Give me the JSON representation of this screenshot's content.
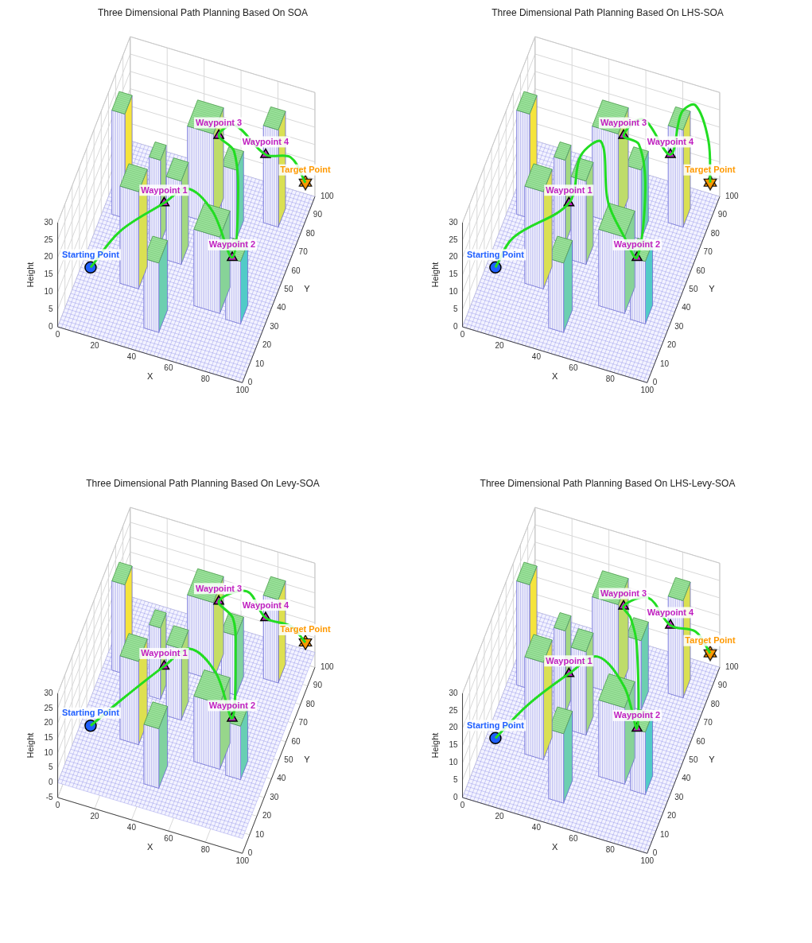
{
  "chart_data": [
    {
      "type": "line",
      "title": "Three Dimensional Path Planning Based On SOA",
      "xlabel": "X",
      "ylabel": "Y",
      "zlabel": "Height",
      "xlim": [
        0,
        100
      ],
      "ylim": [
        0,
        100
      ],
      "zlim": [
        0,
        30
      ],
      "xticks": [
        0,
        20,
        40,
        60,
        80,
        100
      ],
      "yticks": [
        0,
        10,
        20,
        30,
        40,
        50,
        60,
        70,
        80,
        90,
        100
      ],
      "zticks": [
        0,
        5,
        10,
        15,
        20,
        25,
        30
      ],
      "grid": true,
      "ground_height": 0,
      "obstacles": [
        {
          "x": [
            5,
            12
          ],
          "y": [
            62,
            72
          ],
          "height": 30
        },
        {
          "x": [
            22,
            32
          ],
          "y": [
            30,
            42
          ],
          "height": 28
        },
        {
          "x": [
            28,
            34
          ],
          "y": [
            55,
            63
          ],
          "height": 24
        },
        {
          "x": [
            42,
            56
          ],
          "y": [
            72,
            86
          ],
          "height": 26
        },
        {
          "x": [
            40,
            48
          ],
          "y": [
            48,
            58
          ],
          "height": 24
        },
        {
          "x": [
            62,
            70
          ],
          "y": [
            68,
            78
          ],
          "height": 20
        },
        {
          "x": [
            42,
            50
          ],
          "y": [
            12,
            24
          ],
          "height": 20
        },
        {
          "x": [
            62,
            76
          ],
          "y": [
            30,
            44
          ],
          "height": 22
        },
        {
          "x": [
            80,
            88
          ],
          "y": [
            28,
            38
          ],
          "height": 18
        },
        {
          "x": [
            80,
            88
          ],
          "y": [
            80,
            90
          ],
          "height": 28
        }
      ],
      "points": [
        {
          "name": "Starting Point",
          "x": 8,
          "y": 25,
          "z": 5,
          "color": "#1f5fff",
          "marker": "circle"
        },
        {
          "name": "Waypoint 1",
          "x": 38,
          "y": 50,
          "z": 15,
          "color": "#c020c0",
          "marker": "triangle"
        },
        {
          "name": "Waypoint 2",
          "x": 78,
          "y": 42,
          "z": 10,
          "color": "#c020c0",
          "marker": "triangle"
        },
        {
          "name": "Waypoint 3",
          "x": 55,
          "y": 82,
          "z": 20,
          "color": "#c020c0",
          "marker": "triangle"
        },
        {
          "name": "Waypoint 4",
          "x": 78,
          "y": 88,
          "z": 15,
          "color": "#c020c0",
          "marker": "triangle"
        },
        {
          "name": "Target Point",
          "x": 98,
          "y": 92,
          "z": 8,
          "color": "#ff9900",
          "marker": "hexagram"
        }
      ],
      "path": {
        "color": "#22dd22",
        "line_style": "solid",
        "x": [
          8,
          20,
          38,
          50,
          65,
          78,
          76,
          68,
          55,
          62,
          78,
          90,
          98
        ],
        "y": [
          25,
          35,
          50,
          52,
          48,
          42,
          55,
          70,
          82,
          86,
          88,
          92,
          92
        ],
        "z": [
          5,
          12,
          15,
          20,
          18,
          10,
          18,
          24,
          20,
          22,
          15,
          14,
          8
        ]
      }
    },
    {
      "type": "line",
      "title": "Three Dimensional Path Planning Based On LHS-SOA",
      "xlabel": "X",
      "ylabel": "Y",
      "zlabel": "Height",
      "xlim": [
        0,
        100
      ],
      "ylim": [
        0,
        100
      ],
      "zlim": [
        0,
        30
      ],
      "xticks": [
        0,
        20,
        40,
        60,
        80,
        100
      ],
      "yticks": [
        0,
        10,
        20,
        30,
        40,
        50,
        60,
        70,
        80,
        90,
        100
      ],
      "zticks": [
        0,
        5,
        10,
        15,
        20,
        25,
        30
      ],
      "grid": true,
      "ground_height": 0,
      "obstacles": [
        {
          "x": [
            5,
            12
          ],
          "y": [
            62,
            72
          ],
          "height": 30
        },
        {
          "x": [
            22,
            32
          ],
          "y": [
            30,
            42
          ],
          "height": 28
        },
        {
          "x": [
            28,
            34
          ],
          "y": [
            55,
            63
          ],
          "height": 24
        },
        {
          "x": [
            42,
            56
          ],
          "y": [
            72,
            86
          ],
          "height": 26
        },
        {
          "x": [
            40,
            48
          ],
          "y": [
            48,
            58
          ],
          "height": 24
        },
        {
          "x": [
            62,
            70
          ],
          "y": [
            68,
            78
          ],
          "height": 20
        },
        {
          "x": [
            42,
            50
          ],
          "y": [
            12,
            24
          ],
          "height": 20
        },
        {
          "x": [
            62,
            76
          ],
          "y": [
            30,
            44
          ],
          "height": 22
        },
        {
          "x": [
            80,
            88
          ],
          "y": [
            28,
            38
          ],
          "height": 18
        },
        {
          "x": [
            80,
            88
          ],
          "y": [
            80,
            90
          ],
          "height": 28
        }
      ],
      "points": [
        {
          "name": "Starting Point",
          "x": 8,
          "y": 25,
          "z": 5,
          "color": "#1f5fff",
          "marker": "circle"
        },
        {
          "name": "Waypoint 1",
          "x": 38,
          "y": 50,
          "z": 15,
          "color": "#c020c0",
          "marker": "triangle"
        },
        {
          "name": "Waypoint 2",
          "x": 78,
          "y": 42,
          "z": 10,
          "color": "#c020c0",
          "marker": "triangle"
        },
        {
          "name": "Waypoint 3",
          "x": 55,
          "y": 82,
          "z": 20,
          "color": "#c020c0",
          "marker": "triangle"
        },
        {
          "name": "Waypoint 4",
          "x": 78,
          "y": 88,
          "z": 15,
          "color": "#c020c0",
          "marker": "triangle"
        },
        {
          "name": "Target Point",
          "x": 98,
          "y": 92,
          "z": 8,
          "color": "#ff9900",
          "marker": "hexagram"
        }
      ],
      "path": {
        "color": "#22dd22",
        "line_style": "solid",
        "x": [
          8,
          15,
          38,
          42,
          50,
          56,
          68,
          78,
          77,
          68,
          55,
          64,
          78,
          84,
          90,
          97,
          98
        ],
        "y": [
          25,
          32,
          50,
          56,
          64,
          58,
          50,
          42,
          56,
          70,
          82,
          86,
          88,
          88,
          92,
          92,
          92
        ],
        "z": [
          5,
          11,
          15,
          26,
          27,
          14,
          10,
          10,
          22,
          26,
          20,
          24,
          15,
          28,
          29,
          20,
          8
        ]
      }
    },
    {
      "type": "line",
      "title": "Three Dimensional Path Planning Based On Levy-SOA",
      "xlabel": "X",
      "ylabel": "Y",
      "zlabel": "Height",
      "xlim": [
        0,
        100
      ],
      "ylim": [
        0,
        100
      ],
      "zlim": [
        -5,
        30
      ],
      "xticks": [
        0,
        20,
        40,
        60,
        80,
        100
      ],
      "yticks": [
        0,
        10,
        20,
        30,
        40,
        50,
        60,
        70,
        80,
        90,
        100
      ],
      "zticks": [
        -5,
        0,
        5,
        10,
        15,
        20,
        25,
        30
      ],
      "grid": true,
      "ground_height": 0,
      "obstacles": [
        {
          "x": [
            5,
            12
          ],
          "y": [
            62,
            72
          ],
          "height": 30
        },
        {
          "x": [
            22,
            32
          ],
          "y": [
            30,
            42
          ],
          "height": 28
        },
        {
          "x": [
            28,
            34
          ],
          "y": [
            55,
            63
          ],
          "height": 24
        },
        {
          "x": [
            42,
            56
          ],
          "y": [
            72,
            86
          ],
          "height": 26
        },
        {
          "x": [
            40,
            48
          ],
          "y": [
            48,
            58
          ],
          "height": 24
        },
        {
          "x": [
            62,
            70
          ],
          "y": [
            68,
            78
          ],
          "height": 20
        },
        {
          "x": [
            42,
            50
          ],
          "y": [
            12,
            24
          ],
          "height": 20
        },
        {
          "x": [
            62,
            76
          ],
          "y": [
            30,
            44
          ],
          "height": 22
        },
        {
          "x": [
            80,
            88
          ],
          "y": [
            28,
            38
          ],
          "height": 18
        },
        {
          "x": [
            80,
            88
          ],
          "y": [
            80,
            90
          ],
          "height": 28
        }
      ],
      "points": [
        {
          "name": "Starting Point",
          "x": 8,
          "y": 25,
          "z": 5,
          "color": "#1f5fff",
          "marker": "circle"
        },
        {
          "name": "Waypoint 1",
          "x": 38,
          "y": 50,
          "z": 15,
          "color": "#c020c0",
          "marker": "triangle"
        },
        {
          "name": "Waypoint 2",
          "x": 78,
          "y": 42,
          "z": 10,
          "color": "#c020c0",
          "marker": "triangle"
        },
        {
          "name": "Waypoint 3",
          "x": 55,
          "y": 82,
          "z": 20,
          "color": "#c020c0",
          "marker": "triangle"
        },
        {
          "name": "Waypoint 4",
          "x": 78,
          "y": 88,
          "z": 15,
          "color": "#c020c0",
          "marker": "triangle"
        },
        {
          "name": "Target Point",
          "x": 98,
          "y": 92,
          "z": 8,
          "color": "#ff9900",
          "marker": "hexagram"
        }
      ],
      "path": {
        "color": "#22dd22",
        "line_style": "solid",
        "x": [
          8,
          22,
          38,
          50,
          66,
          78,
          72,
          65,
          55,
          68,
          78,
          90,
          98
        ],
        "y": [
          25,
          32,
          50,
          55,
          50,
          42,
          62,
          76,
          82,
          88,
          88,
          92,
          92
        ],
        "z": [
          5,
          12,
          15,
          20,
          18,
          10,
          20,
          20,
          20,
          22,
          15,
          12,
          8
        ]
      }
    },
    {
      "type": "line",
      "title": "Three Dimensional Path Planning Based On LHS-Levy-SOA",
      "xlabel": "X",
      "ylabel": "Y",
      "zlabel": "Height",
      "xlim": [
        0,
        100
      ],
      "ylim": [
        0,
        100
      ],
      "zlim": [
        0,
        30
      ],
      "xticks": [
        0,
        20,
        40,
        60,
        80,
        100
      ],
      "yticks": [
        0,
        10,
        20,
        30,
        40,
        50,
        60,
        70,
        80,
        90,
        100
      ],
      "zticks": [
        0,
        5,
        10,
        15,
        20,
        25,
        30
      ],
      "grid": true,
      "ground_height": 0,
      "obstacles": [
        {
          "x": [
            5,
            12
          ],
          "y": [
            62,
            72
          ],
          "height": 30
        },
        {
          "x": [
            22,
            32
          ],
          "y": [
            30,
            42
          ],
          "height": 28
        },
        {
          "x": [
            28,
            34
          ],
          "y": [
            55,
            63
          ],
          "height": 24
        },
        {
          "x": [
            42,
            56
          ],
          "y": [
            72,
            86
          ],
          "height": 26
        },
        {
          "x": [
            40,
            48
          ],
          "y": [
            48,
            58
          ],
          "height": 24
        },
        {
          "x": [
            62,
            70
          ],
          "y": [
            68,
            78
          ],
          "height": 20
        },
        {
          "x": [
            42,
            50
          ],
          "y": [
            12,
            24
          ],
          "height": 20
        },
        {
          "x": [
            62,
            76
          ],
          "y": [
            30,
            44
          ],
          "height": 22
        },
        {
          "x": [
            80,
            88
          ],
          "y": [
            28,
            38
          ],
          "height": 18
        },
        {
          "x": [
            80,
            88
          ],
          "y": [
            80,
            90
          ],
          "height": 28
        }
      ],
      "points": [
        {
          "name": "Starting Point",
          "x": 8,
          "y": 25,
          "z": 5,
          "color": "#1f5fff",
          "marker": "circle"
        },
        {
          "name": "Waypoint 1",
          "x": 38,
          "y": 50,
          "z": 15,
          "color": "#c020c0",
          "marker": "triangle"
        },
        {
          "name": "Waypoint 2",
          "x": 78,
          "y": 42,
          "z": 10,
          "color": "#c020c0",
          "marker": "triangle"
        },
        {
          "name": "Waypoint 3",
          "x": 55,
          "y": 82,
          "z": 20,
          "color": "#c020c0",
          "marker": "triangle"
        },
        {
          "name": "Waypoint 4",
          "x": 78,
          "y": 88,
          "z": 15,
          "color": "#c020c0",
          "marker": "triangle"
        },
        {
          "name": "Target Point",
          "x": 98,
          "y": 92,
          "z": 8,
          "color": "#ff9900",
          "marker": "hexagram"
        }
      ],
      "path": {
        "color": "#22dd22",
        "line_style": "solid",
        "x": [
          8,
          22,
          38,
          52,
          68,
          78,
          70,
          62,
          55,
          66,
          78,
          90,
          98
        ],
        "y": [
          25,
          34,
          50,
          54,
          50,
          42,
          62,
          74,
          82,
          88,
          88,
          92,
          92
        ],
        "z": [
          5,
          12,
          15,
          20,
          16,
          10,
          22,
          22,
          20,
          21,
          15,
          13,
          8
        ]
      }
    }
  ]
}
